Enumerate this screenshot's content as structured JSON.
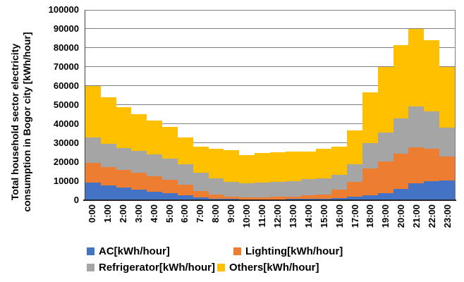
{
  "y_axis": {
    "title_line1": "Total household sector electricity",
    "title_line2": "consumption in Bogor city [kWh/hour]",
    "ticks": [
      0,
      10000,
      20000,
      30000,
      40000,
      50000,
      60000,
      70000,
      80000,
      90000,
      100000
    ]
  },
  "chart_data": {
    "type": "bar",
    "stacked": true,
    "gap_width": 0,
    "grid": true,
    "legend_position": "bottom",
    "ylim": [
      0,
      100000
    ],
    "categories": [
      "0:00",
      "1:00",
      "2:00",
      "3:00",
      "4:00",
      "5:00",
      "6:00",
      "7:00",
      "8:00",
      "9:00",
      "10:00",
      "11:00",
      "12:00",
      "13:00",
      "14:00",
      "15:00",
      "16:00",
      "17:00",
      "18:00",
      "19:00",
      "20:00",
      "21:00",
      "22:00",
      "23:00"
    ],
    "series": [
      {
        "name": "AC[kWh/hour]",
        "color": "#4472C4",
        "values": [
          9200,
          7900,
          6700,
          5700,
          4600,
          3700,
          2500,
          1400,
          900,
          600,
          500,
          500,
          550,
          600,
          700,
          900,
          1300,
          2000,
          2700,
          3700,
          5800,
          8900,
          9900,
          10400
        ]
      },
      {
        "name": "Lighting[kWh/hour]",
        "color": "#ED7D31",
        "values": [
          10300,
          9600,
          9300,
          8600,
          8000,
          6900,
          5800,
          3300,
          2100,
          1400,
          1100,
          1100,
          1150,
          1400,
          1800,
          2100,
          4100,
          7500,
          14000,
          16500,
          18500,
          18800,
          17100,
          12700
        ]
      },
      {
        "name": "Refrigerator[kWh/hour]",
        "color": "#A5A5A5",
        "values": [
          13500,
          12100,
          11400,
          11600,
          11400,
          11300,
          10500,
          9600,
          8400,
          7500,
          7300,
          7500,
          7800,
          8100,
          8600,
          8400,
          8100,
          9300,
          13200,
          15200,
          18700,
          21600,
          19600,
          14900
        ]
      },
      {
        "name": "Others[kWh/hour]",
        "color": "#FFC000",
        "values": [
          27000,
          24400,
          21600,
          19400,
          18000,
          16600,
          14200,
          13700,
          15800,
          16900,
          14800,
          15800,
          15600,
          15300,
          14500,
          15600,
          14500,
          17800,
          26800,
          34600,
          38500,
          40700,
          37400,
          32000
        ]
      }
    ]
  },
  "legend": {
    "items": [
      {
        "label": "AC[kWh/hour]",
        "color": "#4472C4"
      },
      {
        "label": "Lighting[kWh/hour]",
        "color": "#ED7D31"
      },
      {
        "label": "Refrigerator[kWh/hour]",
        "color": "#A5A5A5"
      },
      {
        "label": "Others[kWh/hour]",
        "color": "#FFC000"
      }
    ]
  }
}
